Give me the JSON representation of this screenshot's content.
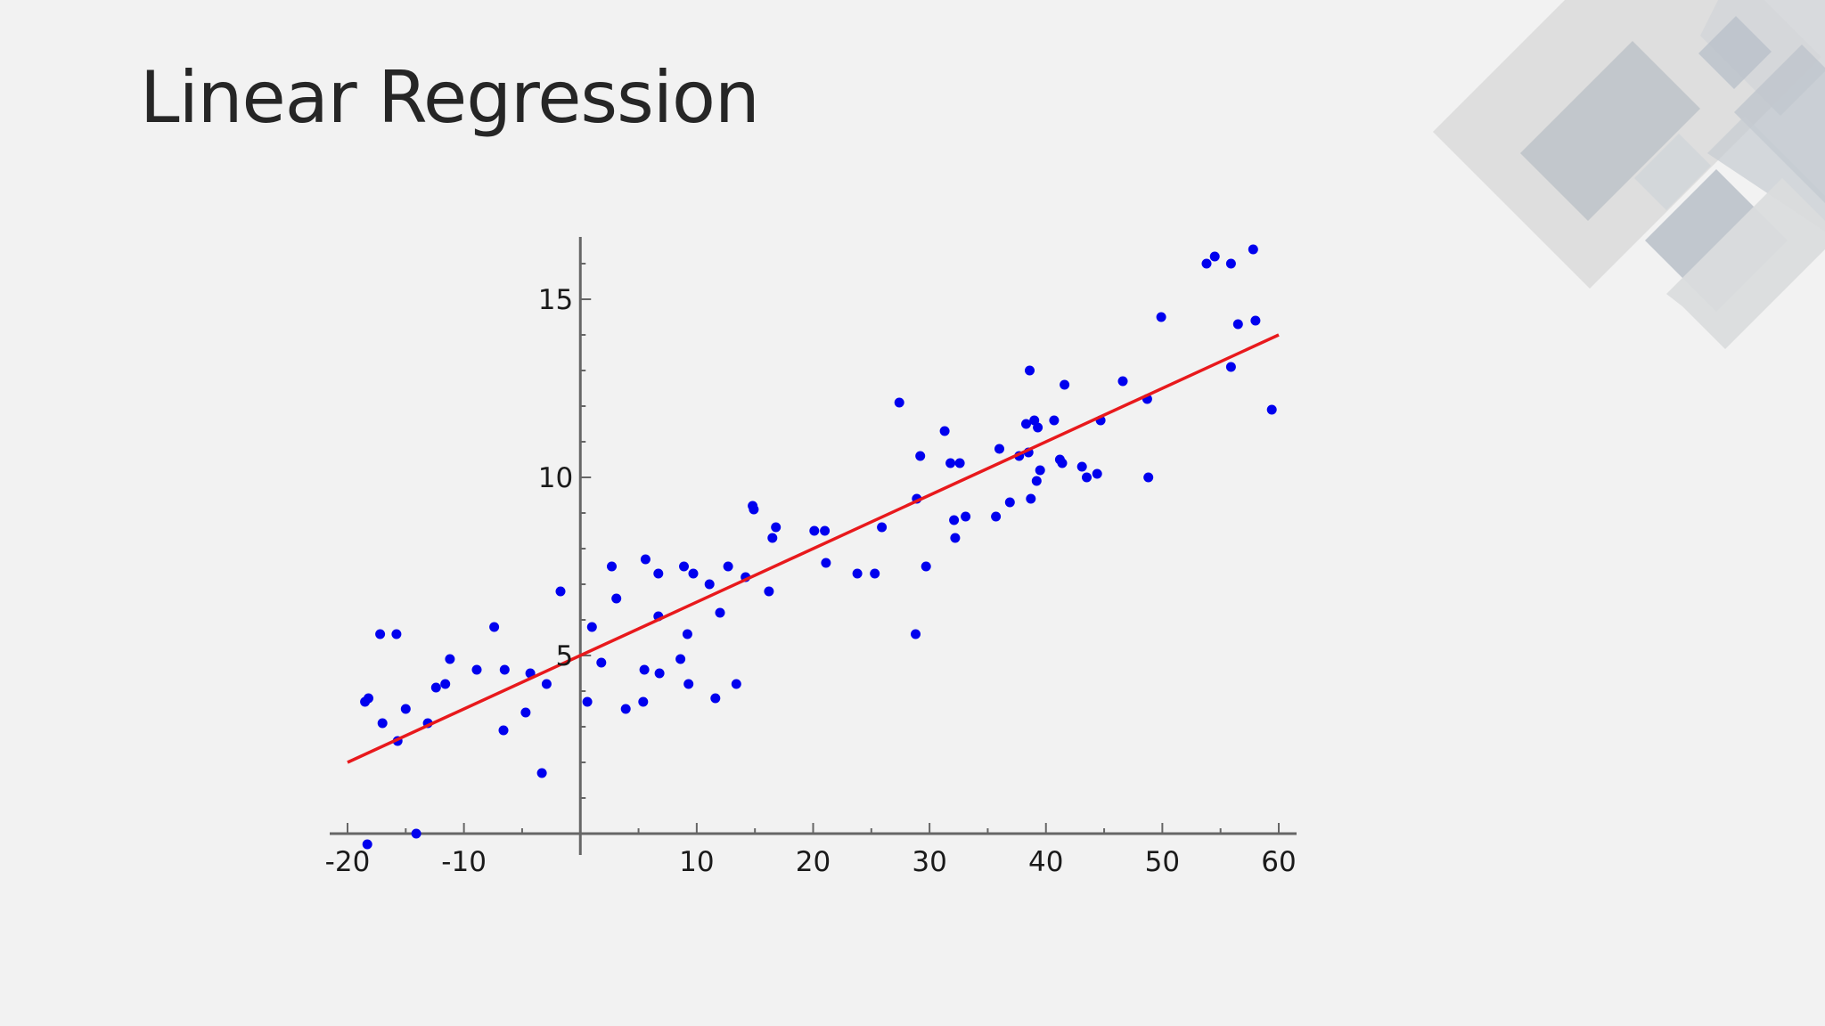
{
  "slide": {
    "title": "Linear Regression"
  },
  "decor": {
    "icon": "geometric-diamond-pattern"
  },
  "chart_data": {
    "type": "scatter",
    "title": "",
    "xlabel": "",
    "ylabel": "",
    "xlim": [
      -20,
      60
    ],
    "ylim": [
      0,
      16.5
    ],
    "xticks": [
      -20,
      -10,
      10,
      20,
      30,
      40,
      50,
      60
    ],
    "yticks": [
      5,
      10,
      15
    ],
    "xtick_labels": [
      "-20",
      "-10",
      "10",
      "20",
      "30",
      "40",
      "50",
      "60"
    ],
    "ytick_labels": [
      "5",
      "10",
      "15"
    ],
    "grid": false,
    "legend": "none",
    "point_color": "#0000ee",
    "line_color": "#e8191c",
    "axis_color": "#666666",
    "series": [
      {
        "type": "scatter",
        "points": [
          [
            -18.5,
            3.7
          ],
          [
            -18.2,
            3.8
          ],
          [
            -17.0,
            3.1
          ],
          [
            -17.2,
            5.6
          ],
          [
            -15.8,
            5.6
          ],
          [
            -15.7,
            2.6
          ],
          [
            -15.0,
            3.5
          ],
          [
            -13.1,
            3.1
          ],
          [
            -12.4,
            4.1
          ],
          [
            -11.6,
            4.2
          ],
          [
            -11.2,
            4.9
          ],
          [
            -8.9,
            4.6
          ],
          [
            -7.4,
            5.8
          ],
          [
            -6.6,
            2.9
          ],
          [
            -6.5,
            4.6
          ],
          [
            -4.7,
            3.4
          ],
          [
            -4.3,
            4.5
          ],
          [
            -3.3,
            1.7
          ],
          [
            -2.9,
            4.2
          ],
          [
            -1.7,
            6.8
          ],
          [
            -18.3,
            -0.3
          ],
          [
            -14.1,
            0.0
          ],
          [
            0.6,
            3.7
          ],
          [
            1.0,
            5.8
          ],
          [
            1.8,
            4.8
          ],
          [
            2.7,
            7.5
          ],
          [
            3.1,
            6.6
          ],
          [
            3.9,
            3.5
          ],
          [
            5.4,
            3.7
          ],
          [
            5.5,
            4.6
          ],
          [
            5.6,
            7.7
          ],
          [
            6.7,
            6.1
          ],
          [
            6.7,
            7.3
          ],
          [
            6.8,
            4.5
          ],
          [
            8.6,
            4.9
          ],
          [
            8.9,
            7.5
          ],
          [
            9.2,
            5.6
          ],
          [
            9.3,
            4.2
          ],
          [
            9.7,
            7.3
          ],
          [
            11.1,
            7.0
          ],
          [
            11.6,
            3.8
          ],
          [
            12.0,
            6.2
          ],
          [
            12.7,
            7.5
          ],
          [
            13.4,
            4.2
          ],
          [
            14.2,
            7.2
          ],
          [
            14.8,
            9.2
          ],
          [
            14.9,
            9.1
          ],
          [
            16.2,
            6.8
          ],
          [
            16.5,
            8.3
          ],
          [
            16.8,
            8.6
          ],
          [
            20.1,
            8.5
          ],
          [
            21.0,
            8.5
          ],
          [
            21.1,
            7.6
          ],
          [
            23.8,
            7.3
          ],
          [
            25.3,
            7.3
          ],
          [
            25.9,
            8.6
          ],
          [
            27.4,
            12.1
          ],
          [
            28.8,
            5.6
          ],
          [
            28.9,
            9.4
          ],
          [
            29.2,
            10.6
          ],
          [
            29.7,
            7.5
          ],
          [
            31.3,
            11.3
          ],
          [
            31.8,
            10.4
          ],
          [
            32.1,
            8.8
          ],
          [
            32.2,
            8.3
          ],
          [
            32.6,
            10.4
          ],
          [
            33.1,
            8.9
          ],
          [
            35.7,
            8.9
          ],
          [
            36.0,
            10.8
          ],
          [
            36.9,
            9.3
          ],
          [
            37.7,
            10.6
          ],
          [
            38.3,
            11.5
          ],
          [
            38.5,
            10.7
          ],
          [
            38.6,
            13.0
          ],
          [
            38.7,
            9.4
          ],
          [
            39.0,
            11.6
          ],
          [
            39.2,
            9.9
          ],
          [
            39.3,
            11.4
          ],
          [
            39.5,
            10.2
          ],
          [
            40.7,
            11.6
          ],
          [
            41.2,
            10.5
          ],
          [
            41.4,
            10.4
          ],
          [
            41.6,
            12.6
          ],
          [
            43.1,
            10.3
          ],
          [
            43.5,
            10.0
          ],
          [
            44.4,
            10.1
          ],
          [
            44.7,
            11.6
          ],
          [
            46.6,
            12.7
          ],
          [
            48.7,
            12.2
          ],
          [
            48.8,
            10.0
          ],
          [
            49.9,
            14.5
          ],
          [
            53.8,
            16.0
          ],
          [
            54.5,
            16.2
          ],
          [
            55.9,
            16.0
          ],
          [
            55.9,
            13.1
          ],
          [
            56.5,
            14.3
          ],
          [
            57.8,
            16.4
          ],
          [
            58.0,
            14.4
          ],
          [
            59.4,
            11.9
          ]
        ]
      },
      {
        "type": "line",
        "x": [
          -20,
          60
        ],
        "y": [
          2.0,
          14.0
        ]
      }
    ]
  }
}
